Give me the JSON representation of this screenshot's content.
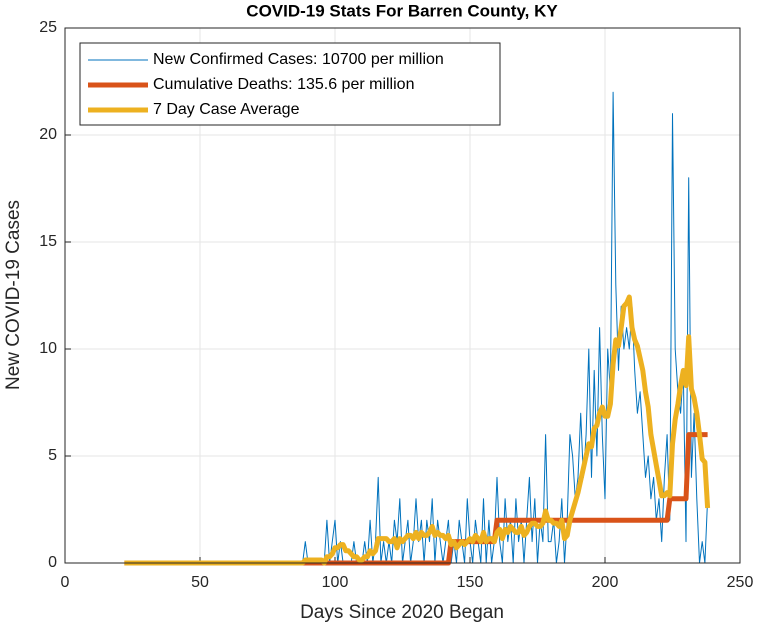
{
  "chart_data": {
    "type": "line",
    "title": "COVID-19 Stats For Barren County, KY",
    "xlabel": "Days Since 2020 Began",
    "ylabel": "New COVID-19 Cases",
    "xlim": [
      0,
      250
    ],
    "xticks": [
      0,
      50,
      100,
      150,
      200,
      250
    ],
    "ylim": [
      0,
      25
    ],
    "yticks": [
      0,
      5,
      10,
      15,
      20,
      25
    ],
    "grid": true,
    "legend": "upper-left",
    "x": [
      22,
      23,
      24,
      25,
      26,
      27,
      28,
      29,
      30,
      31,
      32,
      33,
      34,
      35,
      36,
      37,
      38,
      39,
      40,
      41,
      42,
      43,
      44,
      45,
      46,
      47,
      48,
      49,
      50,
      51,
      52,
      53,
      54,
      55,
      56,
      57,
      58,
      59,
      60,
      61,
      62,
      63,
      64,
      65,
      66,
      67,
      68,
      69,
      70,
      71,
      72,
      73,
      74,
      75,
      76,
      77,
      78,
      79,
      80,
      81,
      82,
      83,
      84,
      85,
      86,
      87,
      88,
      89,
      90,
      91,
      92,
      93,
      94,
      95,
      96,
      97,
      98,
      99,
      100,
      101,
      102,
      103,
      104,
      105,
      106,
      107,
      108,
      109,
      110,
      111,
      112,
      113,
      114,
      115,
      116,
      117,
      118,
      119,
      120,
      121,
      122,
      123,
      124,
      125,
      126,
      127,
      128,
      129,
      130,
      131,
      132,
      133,
      134,
      135,
      136,
      137,
      138,
      139,
      140,
      141,
      142,
      143,
      144,
      145,
      146,
      147,
      148,
      149,
      150,
      151,
      152,
      153,
      154,
      155,
      156,
      157,
      158,
      159,
      160,
      161,
      162,
      163,
      164,
      165,
      166,
      167,
      168,
      169,
      170,
      171,
      172,
      173,
      174,
      175,
      176,
      177,
      178,
      179,
      180,
      181,
      182,
      183,
      184,
      185,
      186,
      187,
      188,
      189,
      190,
      191,
      192,
      193,
      194,
      195,
      196,
      197,
      198,
      199,
      200,
      201,
      202,
      203,
      204,
      205,
      206,
      207,
      208,
      209,
      210,
      211,
      212,
      213,
      214,
      215,
      216,
      217,
      218,
      219,
      220,
      221,
      222,
      223,
      224,
      225,
      226,
      227,
      228,
      229,
      230,
      231,
      232,
      233,
      234,
      235,
      236,
      237,
      238
    ],
    "series": [
      {
        "name": "New Confirmed Cases: 10700 per million",
        "color": "#0072bd",
        "width": 1,
        "values": [
          0,
          0,
          0,
          0,
          0,
          0,
          0,
          0,
          0,
          0,
          0,
          0,
          0,
          0,
          0,
          0,
          0,
          0,
          0,
          0,
          0,
          0,
          0,
          0,
          0,
          0,
          0,
          0,
          0,
          0,
          0,
          0,
          0,
          0,
          0,
          0,
          0,
          0,
          0,
          0,
          0,
          0,
          0,
          0,
          0,
          0,
          0,
          0,
          0,
          0,
          0,
          0,
          0,
          0,
          0,
          0,
          0,
          0,
          0,
          0,
          0,
          0,
          0,
          0,
          0,
          0,
          0,
          1,
          0,
          0,
          0,
          0,
          0,
          0,
          0,
          2,
          0,
          1,
          2,
          0,
          1,
          0,
          0,
          0,
          0,
          1,
          0,
          0,
          0,
          1,
          0,
          2,
          0,
          1,
          4,
          0,
          1,
          0,
          1,
          0,
          2,
          1,
          3,
          0,
          1,
          2,
          0,
          1,
          3,
          1,
          2,
          0,
          2,
          1,
          3,
          0,
          2,
          1,
          0,
          1,
          2,
          0,
          1,
          0,
          2,
          1,
          0,
          3,
          1,
          0,
          2,
          1,
          0,
          3,
          0,
          2,
          0,
          1,
          4,
          1,
          0,
          3,
          1,
          2,
          0,
          3,
          1,
          2,
          0,
          2,
          4,
          1,
          3,
          0,
          2,
          1,
          6,
          1,
          1,
          2,
          0,
          1,
          3,
          0,
          2,
          6,
          5,
          3,
          4,
          7,
          4,
          6,
          10,
          4,
          9,
          5,
          11,
          6,
          3,
          10,
          8,
          22,
          13,
          9,
          12,
          10,
          11,
          10,
          12,
          9,
          7,
          8,
          6,
          4,
          5,
          3,
          4,
          2,
          3,
          1,
          4,
          6,
          2,
          21,
          10,
          8,
          7,
          9,
          1,
          18,
          4,
          7,
          3,
          0,
          1,
          0,
          3
        ]
      },
      {
        "name": "Cumulative Deaths: 135.6 per million",
        "color": "#d95319",
        "width": 5,
        "values": [
          0,
          0,
          0,
          0,
          0,
          0,
          0,
          0,
          0,
          0,
          0,
          0,
          0,
          0,
          0,
          0,
          0,
          0,
          0,
          0,
          0,
          0,
          0,
          0,
          0,
          0,
          0,
          0,
          0,
          0,
          0,
          0,
          0,
          0,
          0,
          0,
          0,
          0,
          0,
          0,
          0,
          0,
          0,
          0,
          0,
          0,
          0,
          0,
          0,
          0,
          0,
          0,
          0,
          0,
          0,
          0,
          0,
          0,
          0,
          0,
          0,
          0,
          0,
          0,
          0,
          0,
          0,
          0,
          0,
          0,
          0,
          0,
          0,
          0,
          0,
          0,
          0,
          0,
          0,
          0,
          0,
          0,
          0,
          0,
          0,
          0,
          0,
          0,
          0,
          0,
          0,
          0,
          0,
          0,
          0,
          0,
          0,
          0,
          0,
          0,
          0,
          0,
          0,
          0,
          0,
          0,
          0,
          0,
          0,
          0,
          0,
          0,
          0,
          0,
          0,
          0,
          0,
          0,
          0,
          0,
          0,
          1,
          1,
          1,
          1,
          1,
          1,
          1,
          1,
          1,
          1,
          1,
          1,
          1,
          1,
          1,
          1,
          1,
          2,
          2,
          2,
          2,
          2,
          2,
          2,
          2,
          2,
          2,
          2,
          2,
          2,
          2,
          2,
          2,
          2,
          2,
          2,
          2,
          2,
          2,
          2,
          2,
          2,
          2,
          2,
          2,
          2,
          2,
          2,
          2,
          2,
          2,
          2,
          2,
          2,
          2,
          2,
          2,
          2,
          2,
          2,
          2,
          2,
          2,
          2,
          2,
          2,
          2,
          2,
          2,
          2,
          2,
          2,
          2,
          2,
          2,
          2,
          2,
          2,
          2,
          2,
          2,
          3,
          3,
          3,
          3,
          3,
          3,
          3,
          6,
          6,
          6,
          6,
          6,
          6,
          6,
          6
        ]
      },
      {
        "name": "7 Day Case Average",
        "color": "#edb120",
        "width": 5,
        "values": [
          0,
          0,
          0,
          0,
          0,
          0,
          0,
          0,
          0,
          0,
          0,
          0,
          0,
          0,
          0,
          0,
          0,
          0,
          0,
          0,
          0,
          0,
          0,
          0,
          0,
          0,
          0,
          0,
          0,
          0,
          0,
          0,
          0,
          0,
          0,
          0,
          0,
          0,
          0,
          0,
          0,
          0,
          0,
          0,
          0,
          0,
          0,
          0,
          0,
          0,
          0,
          0,
          0,
          0,
          0,
          0,
          0,
          0,
          0,
          0,
          0,
          0,
          0,
          0,
          0,
          0,
          0,
          0.14,
          0.14,
          0.14,
          0.14,
          0.14,
          0.14,
          0.14,
          0,
          0.29,
          0.29,
          0.43,
          0.71,
          0.71,
          0.86,
          0.86,
          0.57,
          0.57,
          0.43,
          0.29,
          0.29,
          0.14,
          0.14,
          0.29,
          0.29,
          0.57,
          0.43,
          0.57,
          1.14,
          1.14,
          1.14,
          1.14,
          1,
          1,
          1.14,
          0.71,
          1.14,
          1,
          1.14,
          1.29,
          1.29,
          1.14,
          1.43,
          1.14,
          1.43,
          1.29,
          1.29,
          1.43,
          1.71,
          1.29,
          1.43,
          1.29,
          1.29,
          1.14,
          1.29,
          0.86,
          1,
          0.71,
          0.86,
          1,
          0.86,
          1,
          1.14,
          1,
          1.29,
          1.14,
          1,
          1.43,
          1,
          1.14,
          1.14,
          1,
          1.43,
          1.57,
          1.14,
          1.57,
          1.43,
          1.71,
          1.57,
          1.43,
          1.43,
          1.71,
          1.29,
          1.43,
          1.71,
          1.86,
          1.86,
          1.71,
          1.71,
          1.86,
          2.43,
          2,
          2,
          1.86,
          1.86,
          1.71,
          2,
          1.14,
          1.29,
          2,
          2.43,
          2.86,
          3.29,
          3.86,
          4.43,
          5,
          5.57,
          5.43,
          6.29,
          6.43,
          7,
          7.29,
          6.86,
          6.86,
          7.43,
          9.29,
          10.43,
          10.14,
          11,
          12,
          12.14,
          12.43,
          11,
          10.43,
          10.14,
          9.57,
          9,
          8,
          7.29,
          6,
          5.29,
          4.57,
          3.86,
          3.14,
          3.14,
          3.29,
          3.14,
          5.57,
          6.71,
          7.43,
          8.29,
          9,
          8.29,
          10.57,
          8.14,
          7.71,
          7,
          6,
          4.86,
          4.71,
          2.57
        ]
      }
    ]
  }
}
